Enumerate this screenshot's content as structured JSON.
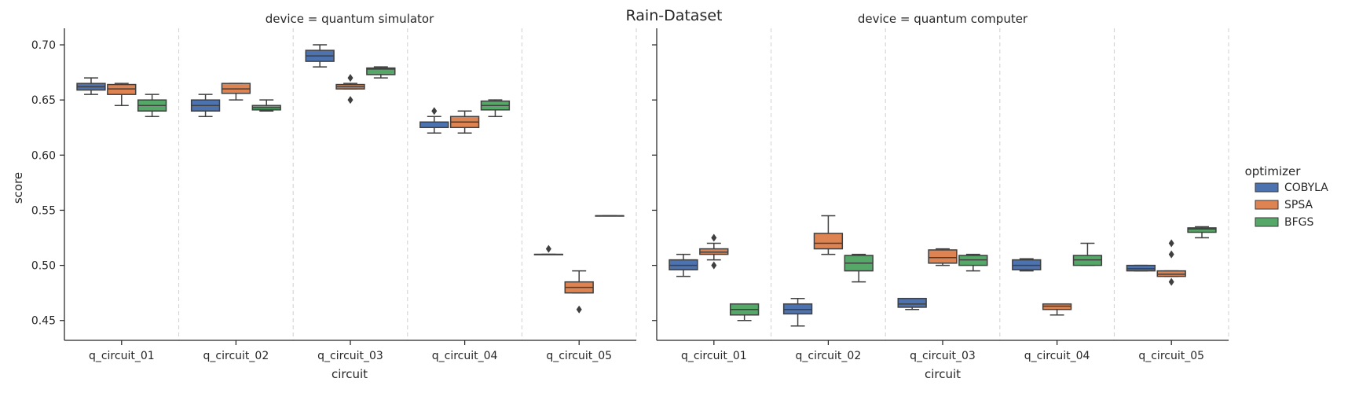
{
  "chart_data": {
    "type": "box",
    "title": "Rain-Dataset",
    "xlabel": "circuit",
    "ylabel": "score",
    "ylim": [
      0.432,
      0.715
    ],
    "yticks": [
      "0.45",
      "0.50",
      "0.55",
      "0.60",
      "0.65",
      "0.70"
    ],
    "categories": [
      "q_circuit_01",
      "q_circuit_02",
      "q_circuit_03",
      "q_circuit_04",
      "q_circuit_05"
    ],
    "grid": "vertical dashed separators between circuits",
    "legend": {
      "title": "optimizer",
      "position": "right",
      "entries": [
        {
          "name": "COBYLA",
          "color": "#4c72b0"
        },
        {
          "name": "SPSA",
          "color": "#dd8452"
        },
        {
          "name": "BFGS",
          "color": "#55a868"
        }
      ]
    },
    "panels": [
      {
        "title": "device = quantum simulator",
        "boxes": {
          "COBYLA": [
            {
              "whislo": 0.655,
              "q1": 0.659,
              "med": 0.662,
              "q3": 0.665,
              "whishi": 0.67,
              "fliers": []
            },
            {
              "whislo": 0.635,
              "q1": 0.64,
              "med": 0.645,
              "q3": 0.65,
              "whishi": 0.655,
              "fliers": []
            },
            {
              "whislo": 0.68,
              "q1": 0.685,
              "med": 0.69,
              "q3": 0.695,
              "whishi": 0.7,
              "fliers": []
            },
            {
              "whislo": 0.62,
              "q1": 0.625,
              "med": 0.63,
              "q3": 0.63,
              "whishi": 0.635,
              "fliers": [
                0.64
              ]
            },
            {
              "whislo": 0.51,
              "q1": 0.51,
              "med": 0.51,
              "q3": 0.51,
              "whishi": 0.51,
              "fliers": [
                0.515
              ]
            }
          ],
          "SPSA": [
            {
              "whislo": 0.645,
              "q1": 0.655,
              "med": 0.66,
              "q3": 0.664,
              "whishi": 0.665,
              "fliers": []
            },
            {
              "whislo": 0.65,
              "q1": 0.656,
              "med": 0.66,
              "q3": 0.665,
              "whishi": 0.665,
              "fliers": []
            },
            {
              "whislo": 0.66,
              "q1": 0.66,
              "med": 0.662,
              "q3": 0.664,
              "whishi": 0.665,
              "fliers": [
                0.67,
                0.65
              ]
            },
            {
              "whislo": 0.62,
              "q1": 0.625,
              "med": 0.63,
              "q3": 0.635,
              "whishi": 0.64,
              "fliers": []
            },
            {
              "whislo": 0.475,
              "q1": 0.475,
              "med": 0.48,
              "q3": 0.485,
              "whishi": 0.495,
              "fliers": [
                0.46
              ]
            }
          ],
          "BFGS": [
            {
              "whislo": 0.635,
              "q1": 0.64,
              "med": 0.645,
              "q3": 0.65,
              "whishi": 0.655,
              "fliers": []
            },
            {
              "whislo": 0.64,
              "q1": 0.641,
              "med": 0.643,
              "q3": 0.645,
              "whishi": 0.65,
              "fliers": []
            },
            {
              "whislo": 0.67,
              "q1": 0.673,
              "med": 0.678,
              "q3": 0.679,
              "whishi": 0.68,
              "fliers": []
            },
            {
              "whislo": 0.635,
              "q1": 0.641,
              "med": 0.645,
              "q3": 0.649,
              "whishi": 0.65,
              "fliers": []
            },
            {
              "whislo": 0.545,
              "q1": 0.545,
              "med": 0.545,
              "q3": 0.545,
              "whishi": 0.545,
              "fliers": []
            }
          ]
        }
      },
      {
        "title": "device = quantum computer",
        "boxes": {
          "COBYLA": [
            {
              "whislo": 0.49,
              "q1": 0.496,
              "med": 0.5,
              "q3": 0.505,
              "whishi": 0.51,
              "fliers": []
            },
            {
              "whislo": 0.445,
              "q1": 0.456,
              "med": 0.46,
              "q3": 0.465,
              "whishi": 0.47,
              "fliers": []
            },
            {
              "whislo": 0.46,
              "q1": 0.462,
              "med": 0.465,
              "q3": 0.47,
              "whishi": 0.47,
              "fliers": []
            },
            {
              "whislo": 0.495,
              "q1": 0.496,
              "med": 0.5,
              "q3": 0.505,
              "whishi": 0.506,
              "fliers": []
            },
            {
              "whislo": 0.495,
              "q1": 0.495,
              "med": 0.497,
              "q3": 0.5,
              "whishi": 0.5,
              "fliers": []
            }
          ],
          "SPSA": [
            {
              "whislo": 0.505,
              "q1": 0.51,
              "med": 0.512,
              "q3": 0.515,
              "whishi": 0.52,
              "fliers": [
                0.525,
                0.5
              ]
            },
            {
              "whislo": 0.51,
              "q1": 0.515,
              "med": 0.52,
              "q3": 0.529,
              "whishi": 0.545,
              "fliers": []
            },
            {
              "whislo": 0.5,
              "q1": 0.502,
              "med": 0.507,
              "q3": 0.514,
              "whishi": 0.515,
              "fliers": []
            },
            {
              "whislo": 0.455,
              "q1": 0.46,
              "med": 0.463,
              "q3": 0.465,
              "whishi": 0.465,
              "fliers": []
            },
            {
              "whislo": 0.49,
              "q1": 0.49,
              "med": 0.492,
              "q3": 0.495,
              "whishi": 0.495,
              "fliers": [
                0.52,
                0.51,
                0.485
              ]
            }
          ],
          "BFGS": [
            {
              "whislo": 0.45,
              "q1": 0.455,
              "med": 0.46,
              "q3": 0.465,
              "whishi": 0.465,
              "fliers": []
            },
            {
              "whislo": 0.485,
              "q1": 0.495,
              "med": 0.502,
              "q3": 0.509,
              "whishi": 0.51,
              "fliers": []
            },
            {
              "whislo": 0.495,
              "q1": 0.5,
              "med": 0.505,
              "q3": 0.509,
              "whishi": 0.51,
              "fliers": []
            },
            {
              "whislo": 0.5,
              "q1": 0.5,
              "med": 0.505,
              "q3": 0.509,
              "whishi": 0.52,
              "fliers": []
            },
            {
              "whislo": 0.525,
              "q1": 0.53,
              "med": 0.533,
              "q3": 0.534,
              "whishi": 0.535,
              "fliers": []
            }
          ]
        }
      }
    ]
  }
}
